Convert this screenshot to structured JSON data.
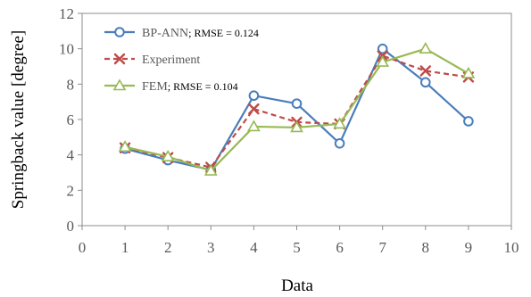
{
  "chart_data": {
    "type": "line",
    "xlabel": "Data",
    "ylabel": "Springback value [degree]",
    "xlim": [
      0,
      10
    ],
    "ylim": [
      0,
      12
    ],
    "xticks": [
      0,
      1,
      2,
      3,
      4,
      5,
      6,
      7,
      8,
      9,
      10
    ],
    "yticks": [
      0,
      2,
      4,
      6,
      8,
      10,
      12
    ],
    "grid": false,
    "legend_position": "top-left",
    "x": [
      1,
      2,
      3,
      4,
      5,
      6,
      7,
      8,
      9
    ],
    "series": [
      {
        "name": "BP-ANN",
        "label_extra": "; RMSE = 0.124",
        "values": [
          4.35,
          3.7,
          3.15,
          7.35,
          6.9,
          4.65,
          10.0,
          8.1,
          5.9
        ],
        "color": "#4a7ebb",
        "marker": "circle",
        "dash": "solid"
      },
      {
        "name": "Experiment",
        "label_extra": "",
        "values": [
          4.4,
          3.85,
          3.3,
          6.6,
          5.85,
          5.75,
          9.6,
          8.75,
          8.4
        ],
        "color": "#be4b48",
        "marker": "x",
        "dash": "dashed"
      },
      {
        "name": "FEM",
        "label_extra": "; RMSE = 0.104",
        "values": [
          4.45,
          3.9,
          3.1,
          5.6,
          5.55,
          5.75,
          9.25,
          10.0,
          8.6
        ],
        "color": "#98b954",
        "marker": "triangle",
        "dash": "solid"
      }
    ]
  }
}
